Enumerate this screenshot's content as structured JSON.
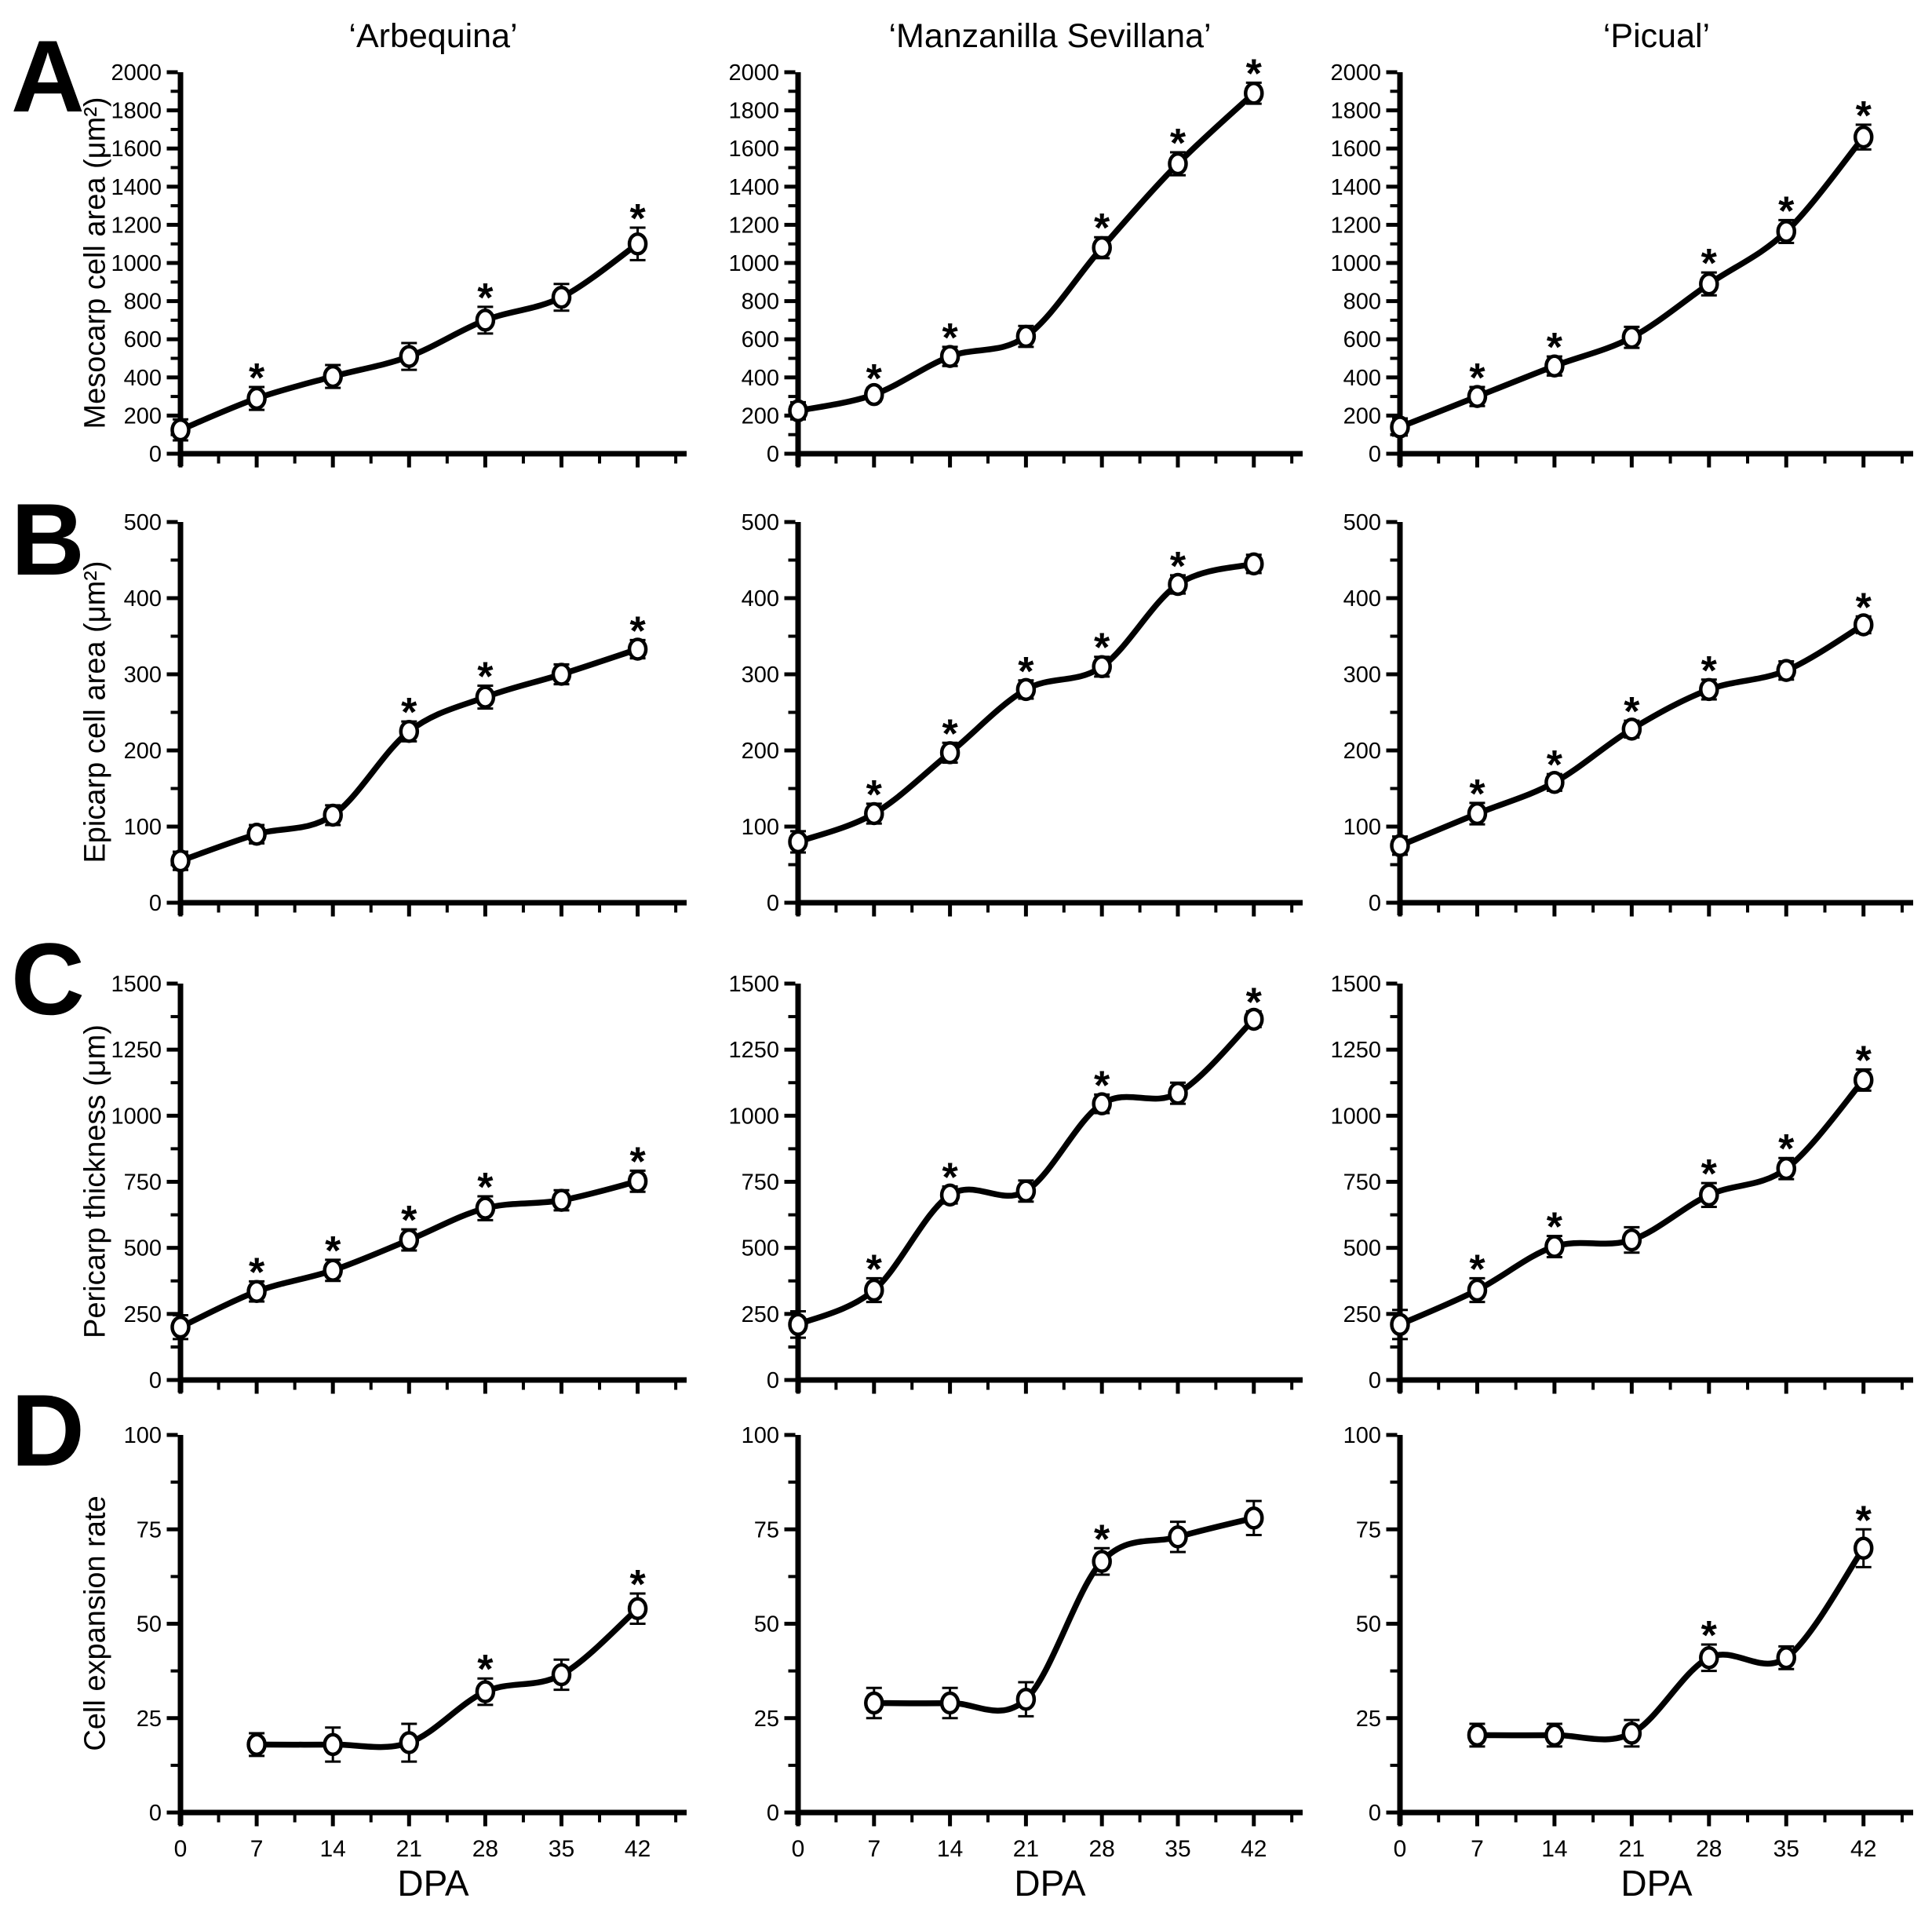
{
  "figure": {
    "panel_labels": [
      "A",
      "B",
      "C",
      "D"
    ],
    "column_titles": [
      "‘Arbequina’",
      "‘Manzanilla Sevillana’",
      "‘Picual’"
    ],
    "row_y_titles": [
      "Mesocarp cell area (μm²)",
      "Epicarp cell area (μm²)",
      "Pericarp thickness (μm)",
      "Cell expansion rate"
    ],
    "x_axis_label": "DPA"
  },
  "chart_data": [
    {
      "id": "mesocarp-arbequina",
      "type": "line",
      "row": 0,
      "col": 0,
      "title": "‘Arbequina’",
      "ylabel": "Mesocarp cell area (μm²)",
      "xlabel": "DPA",
      "ylim": [
        0,
        2000
      ],
      "ytick_step": 200,
      "yminor_step": 100,
      "xlim": [
        0,
        46.5
      ],
      "xticks": [
        0,
        7,
        14,
        21,
        28,
        35,
        42
      ],
      "xminor_step": 3.5,
      "grid": false,
      "marker": "open-circle",
      "x": [
        0,
        7,
        14,
        21,
        28,
        35,
        42
      ],
      "y": [
        125,
        290,
        405,
        510,
        700,
        820,
        1100
      ],
      "err": [
        55,
        60,
        60,
        70,
        70,
        70,
        85
      ],
      "sig_at_x": [
        7,
        28,
        42
      ]
    },
    {
      "id": "mesocarp-manzanilla-sevillana",
      "type": "line",
      "row": 0,
      "col": 1,
      "title": "‘Manzanilla Sevillana’",
      "ylabel": "Mesocarp cell area (μm²)",
      "xlabel": "DPA",
      "ylim": [
        0,
        2000
      ],
      "ytick_step": 200,
      "yminor_step": 100,
      "xlim": [
        0,
        46.5
      ],
      "xticks": [
        0,
        7,
        14,
        21,
        28,
        35,
        42
      ],
      "xminor_step": 3.5,
      "grid": false,
      "marker": "open-circle",
      "x": [
        0,
        7,
        14,
        21,
        28,
        35,
        42
      ],
      "y": [
        225,
        310,
        510,
        615,
        1080,
        1520,
        1890
      ],
      "err": [
        45,
        35,
        50,
        55,
        55,
        60,
        55
      ],
      "sig_at_x": [
        7,
        14,
        28,
        35,
        42
      ]
    },
    {
      "id": "mesocarp-picual",
      "type": "line",
      "row": 0,
      "col": 2,
      "title": "‘Picual’",
      "ylabel": "Mesocarp cell area (μm²)",
      "xlabel": "DPA",
      "ylim": [
        0,
        2000
      ],
      "ytick_step": 200,
      "yminor_step": 100,
      "xlim": [
        0,
        46.5
      ],
      "xticks": [
        0,
        7,
        14,
        21,
        28,
        35,
        42
      ],
      "xminor_step": 3.5,
      "grid": false,
      "marker": "open-circle",
      "x": [
        0,
        7,
        14,
        21,
        28,
        35,
        42
      ],
      "y": [
        140,
        300,
        460,
        610,
        890,
        1165,
        1660
      ],
      "err": [
        45,
        50,
        50,
        55,
        60,
        60,
        65
      ],
      "sig_at_x": [
        7,
        14,
        28,
        35,
        42
      ]
    },
    {
      "id": "epicarp-arbequina",
      "type": "line",
      "row": 1,
      "col": 0,
      "title": "‘Arbequina’",
      "ylabel": "Epicarp cell area (μm²)",
      "xlabel": "DPA",
      "ylim": [
        0,
        500
      ],
      "ytick_step": 100,
      "yminor_step": 50,
      "xlim": [
        0,
        46.5
      ],
      "xticks": [
        0,
        7,
        14,
        21,
        28,
        35,
        42
      ],
      "xminor_step": 3.5,
      "grid": false,
      "marker": "open-circle",
      "x": [
        0,
        7,
        14,
        21,
        28,
        35,
        42
      ],
      "y": [
        55,
        90,
        115,
        225,
        270,
        300,
        333
      ],
      "err": [
        12,
        12,
        13,
        13,
        15,
        13,
        12
      ],
      "sig_at_x": [
        21,
        28,
        42
      ]
    },
    {
      "id": "epicarp-manzanilla-sevillana",
      "type": "line",
      "row": 1,
      "col": 1,
      "title": "‘Manzanilla Sevillana’",
      "ylabel": "Epicarp cell area (μm²)",
      "xlabel": "DPA",
      "ylim": [
        0,
        500
      ],
      "ytick_step": 100,
      "yminor_step": 50,
      "xlim": [
        0,
        46.5
      ],
      "xticks": [
        0,
        7,
        14,
        21,
        28,
        35,
        42
      ],
      "xminor_step": 3.5,
      "grid": false,
      "marker": "open-circle",
      "x": [
        0,
        7,
        14,
        21,
        28,
        35,
        42
      ],
      "y": [
        80,
        117,
        197,
        280,
        310,
        418,
        445
      ],
      "err": [
        14,
        13,
        13,
        12,
        13,
        12,
        12
      ],
      "sig_at_x": [
        7,
        14,
        21,
        28,
        35
      ]
    },
    {
      "id": "epicarp-picual",
      "type": "line",
      "row": 1,
      "col": 2,
      "title": "‘Picual’",
      "ylabel": "Epicarp cell area (μm²)",
      "xlabel": "DPA",
      "ylim": [
        0,
        500
      ],
      "ytick_step": 100,
      "yminor_step": 50,
      "xlim": [
        0,
        46.5
      ],
      "xticks": [
        0,
        7,
        14,
        21,
        28,
        35,
        42
      ],
      "xminor_step": 3.5,
      "grid": false,
      "marker": "open-circle",
      "x": [
        0,
        7,
        14,
        21,
        28,
        35,
        42
      ],
      "y": [
        75,
        117,
        158,
        228,
        280,
        305,
        365
      ],
      "err": [
        12,
        14,
        11,
        11,
        13,
        12,
        11
      ],
      "sig_at_x": [
        7,
        14,
        21,
        28,
        42
      ]
    },
    {
      "id": "pericarp-arbequina",
      "type": "line",
      "row": 2,
      "col": 0,
      "title": "‘Arbequina’",
      "ylabel": "Pericarp thickness (μm)",
      "xlabel": "DPA",
      "ylim": [
        0,
        1500
      ],
      "ytick_step": 250,
      "yminor_step": 125,
      "xlim": [
        0,
        46.5
      ],
      "xticks": [
        0,
        7,
        14,
        21,
        28,
        35,
        42
      ],
      "xminor_step": 3.5,
      "grid": false,
      "marker": "open-circle",
      "x": [
        0,
        7,
        14,
        21,
        28,
        35,
        42
      ],
      "y": [
        200,
        335,
        415,
        530,
        650,
        680,
        752
      ],
      "err": [
        45,
        38,
        40,
        40,
        45,
        38,
        40
      ],
      "sig_at_x": [
        7,
        14,
        21,
        28,
        42
      ]
    },
    {
      "id": "pericarp-manzanilla-sevillana",
      "type": "line",
      "row": 2,
      "col": 1,
      "title": "‘Manzanilla Sevillana’",
      "ylabel": "Pericarp thickness (μm)",
      "xlabel": "DPA",
      "ylim": [
        0,
        1500
      ],
      "ytick_step": 250,
      "yminor_step": 125,
      "xlim": [
        0,
        46.5
      ],
      "xticks": [
        0,
        7,
        14,
        21,
        28,
        35,
        42
      ],
      "xminor_step": 3.5,
      "grid": false,
      "marker": "open-circle",
      "x": [
        0,
        7,
        14,
        21,
        28,
        35,
        42
      ],
      "y": [
        210,
        340,
        700,
        715,
        1045,
        1085,
        1365
      ],
      "err": [
        50,
        45,
        32,
        40,
        35,
        40,
        30
      ],
      "sig_at_x": [
        7,
        14,
        28,
        42
      ]
    },
    {
      "id": "pericarp-picual",
      "type": "line",
      "row": 2,
      "col": 2,
      "title": "‘Picual’",
      "ylabel": "Pericarp thickness (μm)",
      "xlabel": "DPA",
      "ylim": [
        0,
        1500
      ],
      "ytick_step": 250,
      "yminor_step": 125,
      "xlim": [
        0,
        46.5
      ],
      "xticks": [
        0,
        7,
        14,
        21,
        28,
        35,
        42
      ],
      "xminor_step": 3.5,
      "grid": false,
      "marker": "open-circle",
      "x": [
        0,
        7,
        14,
        21,
        28,
        35,
        42
      ],
      "y": [
        210,
        340,
        505,
        530,
        700,
        800,
        1135
      ],
      "err": [
        55,
        45,
        40,
        48,
        45,
        40,
        40
      ],
      "sig_at_x": [
        7,
        14,
        28,
        35,
        42
      ]
    },
    {
      "id": "cell-expansion-arbequina",
      "type": "line",
      "row": 3,
      "col": 0,
      "title": "‘Arbequina’",
      "ylabel": "Cell expansion rate",
      "xlabel": "DPA",
      "ylim": [
        0,
        100
      ],
      "ytick_step": 25,
      "yminor_step": 12.5,
      "xlim": [
        0,
        46.5
      ],
      "xticks": [
        0,
        7,
        14,
        21,
        28,
        35,
        42
      ],
      "xminor_step": 3.5,
      "grid": false,
      "marker": "open-circle",
      "x": [
        7,
        14,
        21,
        28,
        35,
        42
      ],
      "y": [
        18,
        18,
        18.5,
        32,
        36.5,
        54
      ],
      "err": [
        3,
        4.5,
        5,
        3.5,
        4,
        4
      ],
      "sig_at_x": [
        28,
        42
      ]
    },
    {
      "id": "cell-expansion-manzanilla-sevillana",
      "type": "line",
      "row": 3,
      "col": 1,
      "title": "‘Manzanilla Sevillana’",
      "ylabel": "Cell expansion rate",
      "xlabel": "DPA",
      "ylim": [
        0,
        100
      ],
      "ytick_step": 25,
      "yminor_step": 12.5,
      "xlim": [
        0,
        46.5
      ],
      "xticks": [
        0,
        7,
        14,
        21,
        28,
        35,
        42
      ],
      "xminor_step": 3.5,
      "grid": false,
      "marker": "open-circle",
      "x": [
        7,
        14,
        21,
        28,
        35,
        42
      ],
      "y": [
        29,
        29,
        30,
        66.5,
        73,
        78
      ],
      "err": [
        4,
        4,
        4.5,
        3.5,
        4,
        4.5
      ],
      "sig_at_x": [
        28
      ]
    },
    {
      "id": "cell-expansion-picual",
      "type": "line",
      "row": 3,
      "col": 2,
      "title": "‘Picual’",
      "ylabel": "Cell expansion rate",
      "xlabel": "DPA",
      "ylim": [
        0,
        100
      ],
      "ytick_step": 25,
      "yminor_step": 12.5,
      "xlim": [
        0,
        46.5
      ],
      "xticks": [
        0,
        7,
        14,
        21,
        28,
        35,
        42
      ],
      "xminor_step": 3.5,
      "grid": false,
      "marker": "open-circle",
      "x": [
        7,
        14,
        21,
        28,
        35,
        42
      ],
      "y": [
        20.5,
        20.5,
        21,
        41,
        41,
        70
      ],
      "err": [
        3,
        3,
        3.5,
        3.5,
        3,
        5
      ],
      "sig_at_x": [
        28,
        42
      ]
    }
  ]
}
